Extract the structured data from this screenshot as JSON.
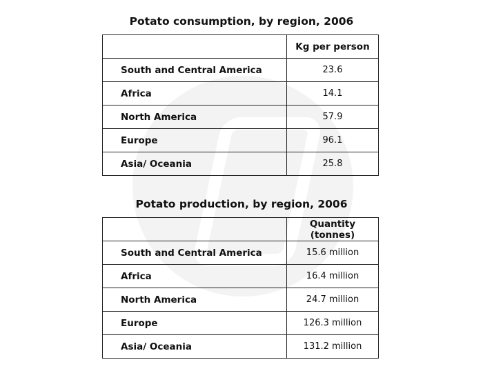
{
  "tables": [
    {
      "title": "Potato consumption, by region, 2006",
      "column": "Kg per person",
      "rows": [
        [
          "South and Central America",
          "23.6"
        ],
        [
          "Africa",
          "14.1"
        ],
        [
          "North America",
          "57.9"
        ],
        [
          "Europe",
          "96.1"
        ],
        [
          "Asia/ Oceania",
          "25.8"
        ]
      ]
    },
    {
      "title": "Potato production, by region, 2006",
      "column": "Quantity (tonnes)",
      "rows": [
        [
          "South and Central America",
          "15.6 million"
        ],
        [
          "Africa",
          "16.4 million"
        ],
        [
          "North America",
          "24.7 million"
        ],
        [
          "Europe",
          "126.3 million"
        ],
        [
          "Asia/ Oceania",
          "131.2 million"
        ]
      ]
    }
  ]
}
